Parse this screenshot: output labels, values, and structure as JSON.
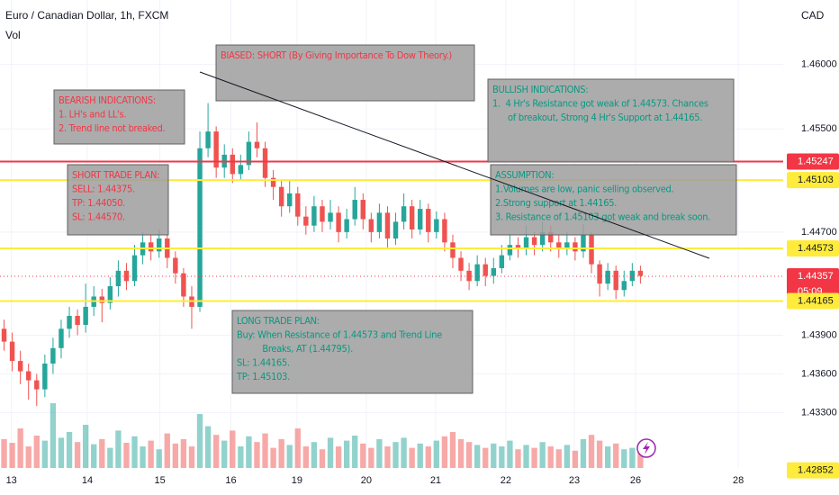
{
  "chart_data": {
    "type": "candlestick",
    "title": "Euro / Canadian Dollar, 1h, FXCM",
    "volume_label": "Vol",
    "currency": "CAD",
    "countdown": "05:09",
    "up_color": "#26a69a",
    "down_color": "#ef5350",
    "open": [
      1.4395,
      1.4385,
      1.437,
      1.4362,
      1.4355,
      1.4348,
      1.4368,
      1.438,
      1.4395,
      1.4405,
      1.4398,
      1.4412,
      1.442,
      1.4415,
      1.4428,
      1.444,
      1.4432,
      1.4452,
      1.4462,
      1.4455,
      1.4465,
      1.445,
      1.4438,
      1.442,
      1.4412,
      1.4535,
      1.4548,
      1.452,
      1.453,
      1.4515,
      1.4522,
      1.454,
      1.4535,
      1.4512,
      1.4505,
      1.449,
      1.45,
      1.4482,
      1.4475,
      1.449,
      1.4478,
      1.4485,
      1.447,
      1.448,
      1.4495,
      1.448,
      1.447,
      1.4485,
      1.4465,
      1.4478,
      1.449,
      1.4472,
      1.4488,
      1.447,
      1.448,
      1.4462,
      1.445,
      1.444,
      1.4432,
      1.4445,
      1.4436,
      1.4442,
      1.4452,
      1.446,
      1.4458,
      1.4466,
      1.446,
      1.447,
      1.4462,
      1.4458,
      1.4462,
      1.4455,
      1.4468,
      1.4445,
      1.443,
      1.444,
      1.4425,
      1.4432,
      1.444
    ],
    "high": [
      1.4402,
      1.4392,
      1.4378,
      1.4368,
      1.436,
      1.4375,
      1.4388,
      1.4402,
      1.4412,
      1.441,
      1.443,
      1.4428,
      1.4426,
      1.4435,
      1.4448,
      1.4446,
      1.446,
      1.447,
      1.4468,
      1.4472,
      1.4468,
      1.4455,
      1.4442,
      1.4428,
      1.4548,
      1.457,
      1.4552,
      1.4538,
      1.4535,
      1.453,
      1.4548,
      1.4555,
      1.454,
      1.4518,
      1.451,
      1.451,
      1.4505,
      1.449,
      1.4498,
      1.4495,
      1.4495,
      1.449,
      1.4488,
      1.4505,
      1.45,
      1.4485,
      1.4492,
      1.449,
      1.4485,
      1.45,
      1.4495,
      1.4495,
      1.4492,
      1.4486,
      1.4485,
      1.4468,
      1.4455,
      1.4446,
      1.4452,
      1.445,
      1.445,
      1.446,
      1.4468,
      1.4466,
      1.4475,
      1.447,
      1.4478,
      1.4475,
      1.4468,
      1.447,
      1.4466,
      1.4476,
      1.447,
      1.4448,
      1.4446,
      1.4444,
      1.444,
      1.4446,
      1.4444
    ],
    "low": [
      1.4378,
      1.4362,
      1.4352,
      1.434,
      1.4335,
      1.4342,
      1.436,
      1.4372,
      1.4388,
      1.439,
      1.4392,
      1.4405,
      1.44,
      1.441,
      1.442,
      1.4425,
      1.4428,
      1.4445,
      1.4448,
      1.445,
      1.4442,
      1.443,
      1.4412,
      1.4395,
      1.4408,
      1.4528,
      1.4512,
      1.4512,
      1.4508,
      1.451,
      1.4518,
      1.4528,
      1.4505,
      1.4495,
      1.4482,
      1.4485,
      1.4475,
      1.4468,
      1.447,
      1.447,
      1.4472,
      1.4462,
      1.4465,
      1.4475,
      1.4472,
      1.4462,
      1.4465,
      1.4458,
      1.446,
      1.4472,
      1.4465,
      1.4468,
      1.4462,
      1.4465,
      1.4455,
      1.4442,
      1.4432,
      1.4425,
      1.4428,
      1.4428,
      1.443,
      1.4438,
      1.4448,
      1.445,
      1.4452,
      1.4452,
      1.4455,
      1.4455,
      1.445,
      1.4452,
      1.4448,
      1.445,
      1.4438,
      1.442,
      1.4425,
      1.4418,
      1.442,
      1.4428,
      1.443
    ],
    "close": [
      1.4385,
      1.437,
      1.4362,
      1.4355,
      1.4348,
      1.4368,
      1.438,
      1.4395,
      1.4405,
      1.4398,
      1.4412,
      1.442,
      1.4415,
      1.4428,
      1.444,
      1.4432,
      1.4452,
      1.4462,
      1.4455,
      1.4465,
      1.445,
      1.4438,
      1.442,
      1.4412,
      1.4535,
      1.4548,
      1.452,
      1.453,
      1.4515,
      1.4522,
      1.454,
      1.4535,
      1.4512,
      1.4505,
      1.449,
      1.45,
      1.4482,
      1.4475,
      1.449,
      1.4478,
      1.4485,
      1.447,
      1.448,
      1.4495,
      1.448,
      1.447,
      1.4485,
      1.4465,
      1.4478,
      1.449,
      1.4472,
      1.4488,
      1.447,
      1.448,
      1.4462,
      1.445,
      1.444,
      1.4432,
      1.4445,
      1.4436,
      1.4442,
      1.4452,
      1.446,
      1.4458,
      1.4466,
      1.446,
      1.447,
      1.4462,
      1.4458,
      1.4462,
      1.4455,
      1.4468,
      1.4445,
      1.443,
      1.444,
      1.4425,
      1.4432,
      1.444,
      1.4436
    ],
    "volume": [
      40,
      35,
      55,
      30,
      45,
      38,
      90,
      42,
      50,
      36,
      60,
      33,
      40,
      28,
      52,
      35,
      44,
      30,
      38,
      26,
      48,
      34,
      40,
      30,
      75,
      58,
      46,
      38,
      52,
      30,
      44,
      36,
      48,
      28,
      40,
      32,
      55,
      30,
      36,
      26,
      42,
      30,
      38,
      45,
      34,
      28,
      40,
      30,
      36,
      42,
      28,
      34,
      30,
      38,
      44,
      50,
      40,
      36,
      32,
      28,
      34,
      30,
      38,
      26,
      32,
      28,
      36,
      30,
      26,
      32,
      24,
      40,
      46,
      38,
      30,
      34,
      26,
      28,
      22
    ],
    "vlim": [
      0,
      100
    ],
    "ylim": [
      1.4287,
      1.465
    ],
    "yticks": [
      {
        "value": 1.46,
        "label": "1.46000"
      },
      {
        "value": 1.455,
        "label": "1.45500"
      },
      {
        "value": 1.447,
        "label": "1.44700"
      },
      {
        "value": 1.439,
        "label": "1.43900"
      },
      {
        "value": 1.436,
        "label": "1.43600"
      },
      {
        "value": 1.433,
        "label": "1.43300"
      }
    ],
    "xlim": [
      0,
      96
    ],
    "xticks": [
      {
        "value": 1.4,
        "label": "13"
      },
      {
        "value": 10.7,
        "label": "14"
      },
      {
        "value": 19.6,
        "label": "15"
      },
      {
        "value": 28.3,
        "label": "16"
      },
      {
        "value": 36.4,
        "label": "19"
      },
      {
        "value": 44.9,
        "label": "20"
      },
      {
        "value": 53.4,
        "label": "21"
      },
      {
        "value": 62,
        "label": "22"
      },
      {
        "value": 70.4,
        "label": "23"
      },
      {
        "value": 77.9,
        "label": "26"
      },
      {
        "value": 90.5,
        "label": "28"
      }
    ],
    "levels": [
      {
        "value": 1.45247,
        "color": "#f23645",
        "line": true
      },
      {
        "value": 1.45103,
        "color": "#ffeb3b",
        "line": true
      },
      {
        "value": 1.44573,
        "color": "#ffeb3b",
        "line": true
      },
      {
        "value": 1.44357,
        "color": "#f23645",
        "line": false,
        "current": true
      },
      {
        "value": 1.44165,
        "color": "#ffeb3b",
        "line": true
      },
      {
        "value": 1.42852,
        "color": "#ffeb3b",
        "line": false
      }
    ],
    "notes": [
      {
        "color": "#f23645",
        "lines": [
          "BEARISH INDICATIONS:",
          "1. LH's and LL's.",
          "2. Trend line not breaked."
        ]
      },
      {
        "color": "#f23645",
        "lines": [
          "SHORT TRADE PLAN:",
          "SELL: 1.44375.",
          "TP: 1.44050.",
          "SL: 1.44570."
        ]
      },
      {
        "color": "#f23645",
        "lines": [
          "BIASED: SHORT (By Giving Importance To Dow Theory.)"
        ]
      },
      {
        "color": "#089981",
        "lines": [
          "BULLISH INDICATIONS:",
          "1.  4 Hr's Resistance got weak of 1.44573. Chances",
          "      of breakout, Strong 4 Hr's Support at 1.44165."
        ]
      },
      {
        "color": "#089981",
        "lines": [
          "ASSUMPTION:",
          "1.Volumes are low, panic selling observed.",
          "2.Strong support at 1.44165.",
          "3. Resistance of 1.45103 got weak and break soon."
        ]
      },
      {
        "color": "#089981",
        "lines": [
          "LONG TRADE PLAN:",
          "Buy: When Resistance of 1.44573 and Trend Line",
          "          Breaks, AT (1.44795).",
          "SL: 1.44165.",
          "TP: 1.45103."
        ]
      }
    ]
  }
}
